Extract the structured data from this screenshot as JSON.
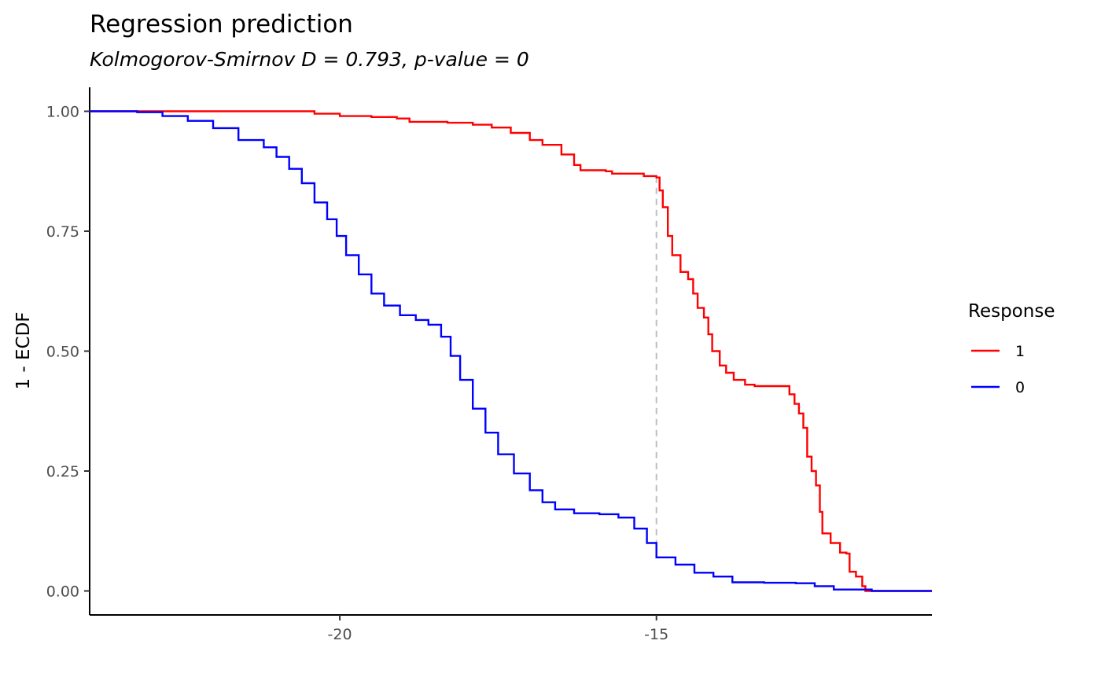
{
  "chart_data": {
    "type": "line",
    "title": "Regression prediction",
    "subtitle": "Kolmogorov-Smirnov D = 0.793, p-value = 0",
    "xlabel": "",
    "ylabel": "1 - ECDF",
    "xlim": [
      -23.95,
      -10.65
    ],
    "ylim": [
      -0.05,
      1.05
    ],
    "x_ticks": [
      -20,
      -15
    ],
    "x_tick_labels": [
      "-20",
      "-15"
    ],
    "y_ticks": [
      0,
      0.25,
      0.5,
      0.75,
      1.0
    ],
    "y_tick_labels": [
      "0.00",
      "0.25",
      "0.50",
      "0.75",
      "1.00"
    ],
    "grid": false,
    "legend": {
      "title": "Response",
      "position": "right"
    },
    "series": [
      {
        "name": "1",
        "color": "#ff0000",
        "points": [
          [
            -23.95,
            1.0
          ],
          [
            -20.5,
            1.0
          ],
          [
            -20.4,
            0.995
          ],
          [
            -20.0,
            0.99
          ],
          [
            -19.5,
            0.988
          ],
          [
            -19.1,
            0.985
          ],
          [
            -18.9,
            0.978
          ],
          [
            -18.3,
            0.976
          ],
          [
            -17.9,
            0.972
          ],
          [
            -17.6,
            0.966
          ],
          [
            -17.3,
            0.955
          ],
          [
            -17.0,
            0.94
          ],
          [
            -16.8,
            0.93
          ],
          [
            -16.5,
            0.91
          ],
          [
            -16.3,
            0.888
          ],
          [
            -16.2,
            0.877
          ],
          [
            -15.8,
            0.875
          ],
          [
            -15.7,
            0.87
          ],
          [
            -15.2,
            0.865
          ],
          [
            -15.0,
            0.862
          ],
          [
            -14.95,
            0.835
          ],
          [
            -14.9,
            0.8
          ],
          [
            -14.82,
            0.74
          ],
          [
            -14.75,
            0.7
          ],
          [
            -14.62,
            0.665
          ],
          [
            -14.5,
            0.65
          ],
          [
            -14.42,
            0.62
          ],
          [
            -14.35,
            0.59
          ],
          [
            -14.25,
            0.57
          ],
          [
            -14.18,
            0.535
          ],
          [
            -14.12,
            0.5
          ],
          [
            -14.0,
            0.47
          ],
          [
            -13.9,
            0.455
          ],
          [
            -13.78,
            0.44
          ],
          [
            -13.6,
            0.43
          ],
          [
            -13.45,
            0.427
          ],
          [
            -12.95,
            0.427
          ],
          [
            -12.9,
            0.41
          ],
          [
            -12.82,
            0.39
          ],
          [
            -12.75,
            0.37
          ],
          [
            -12.68,
            0.34
          ],
          [
            -12.62,
            0.28
          ],
          [
            -12.55,
            0.25
          ],
          [
            -12.48,
            0.22
          ],
          [
            -12.42,
            0.165
          ],
          [
            -12.38,
            0.12
          ],
          [
            -12.25,
            0.1
          ],
          [
            -12.1,
            0.08
          ],
          [
            -12.0,
            0.078
          ],
          [
            -11.95,
            0.04
          ],
          [
            -11.85,
            0.03
          ],
          [
            -11.75,
            0.01
          ],
          [
            -11.7,
            0.0
          ],
          [
            -10.65,
            0.0
          ]
        ]
      },
      {
        "name": "0",
        "color": "#0000ff",
        "points": [
          [
            -23.95,
            1.0
          ],
          [
            -23.2,
            0.998
          ],
          [
            -22.8,
            0.99
          ],
          [
            -22.4,
            0.98
          ],
          [
            -22.0,
            0.965
          ],
          [
            -21.6,
            0.94
          ],
          [
            -21.2,
            0.925
          ],
          [
            -21.0,
            0.905
          ],
          [
            -20.8,
            0.88
          ],
          [
            -20.6,
            0.85
          ],
          [
            -20.4,
            0.81
          ],
          [
            -20.2,
            0.775
          ],
          [
            -20.05,
            0.74
          ],
          [
            -19.9,
            0.7
          ],
          [
            -19.7,
            0.66
          ],
          [
            -19.5,
            0.62
          ],
          [
            -19.3,
            0.595
          ],
          [
            -19.05,
            0.575
          ],
          [
            -18.8,
            0.565
          ],
          [
            -18.6,
            0.555
          ],
          [
            -18.4,
            0.53
          ],
          [
            -18.25,
            0.49
          ],
          [
            -18.1,
            0.44
          ],
          [
            -17.9,
            0.38
          ],
          [
            -17.7,
            0.33
          ],
          [
            -17.5,
            0.285
          ],
          [
            -17.25,
            0.245
          ],
          [
            -17.0,
            0.21
          ],
          [
            -16.8,
            0.185
          ],
          [
            -16.6,
            0.17
          ],
          [
            -16.3,
            0.162
          ],
          [
            -15.9,
            0.16
          ],
          [
            -15.6,
            0.153
          ],
          [
            -15.35,
            0.13
          ],
          [
            -15.15,
            0.1
          ],
          [
            -15.0,
            0.07
          ],
          [
            -14.7,
            0.055
          ],
          [
            -14.4,
            0.038
          ],
          [
            -14.1,
            0.03
          ],
          [
            -13.8,
            0.018
          ],
          [
            -13.3,
            0.017
          ],
          [
            -12.8,
            0.016
          ],
          [
            -12.5,
            0.01
          ],
          [
            -12.2,
            0.003
          ],
          [
            -11.6,
            0.0
          ],
          [
            -10.65,
            0.0
          ]
        ]
      }
    ],
    "annotation_segment": {
      "x": -15.0,
      "y_from": 0.07,
      "y_to": 0.862,
      "color": "#bebebe",
      "style": "dashed"
    }
  }
}
